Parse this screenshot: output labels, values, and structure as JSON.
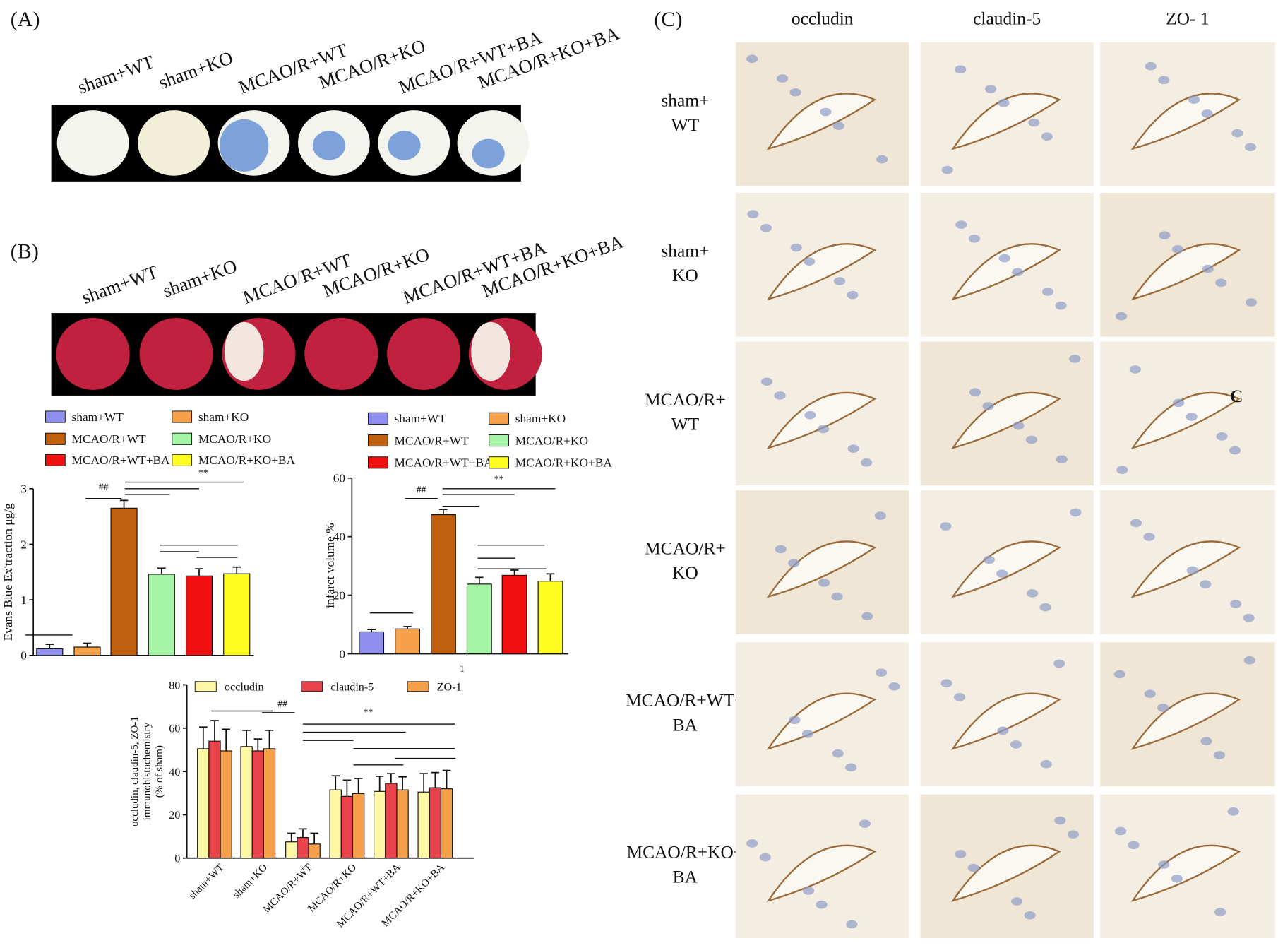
{
  "panel_a": {
    "label": "(A)",
    "groups": [
      "sham+WT",
      "sham+KO",
      "MCAO/R+WT",
      "MCAO/R+KO",
      "MCAO/R+WT+BA",
      "MCAO/R+KO+BA"
    ]
  },
  "panel_b": {
    "label": "(B)",
    "groups": [
      "sham+WT",
      "sham+KO",
      "MCAO/R+WT",
      "MCAO/R+KO",
      "MCAO/R+WT+BA",
      "MCAO/R+KO+BA"
    ]
  },
  "panel_c": {
    "label": "(C)",
    "columns": [
      "occludin",
      "claudin-5",
      "ZO- 1"
    ],
    "rows": [
      [
        "sham+",
        "WT"
      ],
      [
        "sham+",
        "KO"
      ],
      [
        "MCAO/R+",
        "WT"
      ],
      [
        "MCAO/R+",
        "KO"
      ],
      [
        "MCAO/R+WT+",
        "BA"
      ],
      [
        "MCAO/R+KO+",
        "BA"
      ]
    ],
    "annotation": "C"
  },
  "chart_data": [
    {
      "type": "bar",
      "y_label": "Evans Blue Ex'traction μg/g",
      "categories": [
        "sham+WT",
        "sham+KO",
        "MCAO/R+WT",
        "MCAO/R+KO",
        "MCAO/R+WT+BA",
        "MCAO/R+KO+BA"
      ],
      "values": [
        0.12,
        0.15,
        2.65,
        1.46,
        1.43,
        1.47
      ],
      "errors": [
        0.08,
        0.07,
        0.14,
        0.11,
        0.13,
        0.12
      ],
      "colors": [
        "#8f8fef",
        "#f7a04a",
        "#c0600f",
        "#a6f5a6",
        "#f01010",
        "#fdfd20"
      ],
      "ylim": [
        0,
        3
      ],
      "yticks": [
        0,
        1,
        2,
        3
      ],
      "annotations": [
        "##",
        "**"
      ]
    },
    {
      "type": "bar",
      "y_label": "infarct volume %",
      "categories": [
        "sham+WT",
        "sham+KO",
        "MCAO/R+WT",
        "MCAO/R+KO",
        "MCAO/R+WT+BA",
        "MCAO/R+KO+BA"
      ],
      "values": [
        7.5,
        8.5,
        47.5,
        23.8,
        26.8,
        24.8
      ],
      "errors": [
        0.8,
        0.8,
        1.8,
        2.3,
        1.8,
        2.5
      ],
      "colors": [
        "#8f8fef",
        "#f7a04a",
        "#c0600f",
        "#a6f5a6",
        "#f01010",
        "#fdfd20"
      ],
      "ylim": [
        0,
        60
      ],
      "yticks": [
        0,
        20,
        40,
        60
      ],
      "annotations": [
        "##",
        "**",
        "1"
      ]
    },
    {
      "type": "grouped-bar",
      "y_label": [
        "occludin, claudin-5, ZO-1",
        "immunohistochemistry",
        "(% of sham)"
      ],
      "categories": [
        "sham+WT",
        "sham+KO",
        "MCAO/R+WT",
        "MCAO/R+KO",
        "MCAO/R+WT+BA",
        "MCAO/R+KO+BA"
      ],
      "series": [
        {
          "name": "occludin",
          "color": "#fdf7a6",
          "values": [
            50.5,
            51.5,
            7.5,
            31.5,
            30.8,
            30.5
          ],
          "errors": [
            10,
            7.5,
            4,
            6.5,
            7,
            8.5
          ]
        },
        {
          "name": "claudin-5",
          "color": "#e8434a",
          "values": [
            54,
            49.5,
            9.5,
            28.5,
            34.5,
            32.5
          ],
          "errors": [
            9.5,
            5.5,
            4,
            7.5,
            4.5,
            7
          ]
        },
        {
          "name": "ZO-1",
          "color": "#f7a04a",
          "values": [
            49.5,
            50.5,
            6.5,
            29.8,
            31.5,
            32
          ],
          "errors": [
            10,
            8.5,
            5,
            7,
            6,
            8.5
          ]
        }
      ],
      "ylim": [
        0,
        80
      ],
      "yticks": [
        0,
        20,
        40,
        60,
        80
      ],
      "annotations": [
        "##",
        "**"
      ]
    }
  ]
}
